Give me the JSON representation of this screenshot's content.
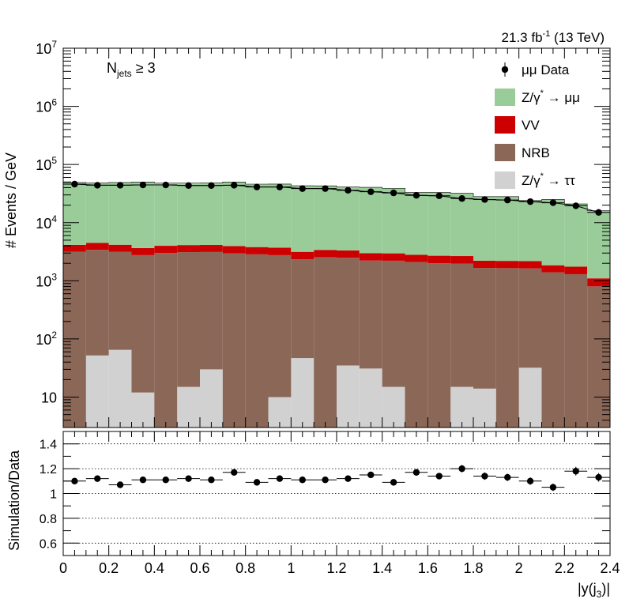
{
  "chart_data": {
    "type": "bar",
    "stacked": true,
    "lumi_label": "21.3 fb",
    "lumi_sup": "-1",
    "lumi_suffix": " (13 TeV)",
    "annotation_main": "N",
    "annotation_sub": "jets",
    "annotation_rest": " ≥ 3",
    "ylabel": "# Events / GeV",
    "ratio_ylabel": "Simulation/Data",
    "xlabel_main": "|y(j",
    "xlabel_sub": "3",
    "xlabel_end": ")|",
    "xlim": [
      0,
      2.4
    ],
    "ylim": [
      3,
      10000000
    ],
    "y_scale": "log",
    "ratio_ylim": [
      0.5,
      1.5
    ],
    "legend_placement": "top-right",
    "x_edges": [
      0,
      0.1,
      0.2,
      0.3,
      0.4,
      0.5,
      0.6,
      0.7,
      0.8,
      0.9,
      1.0,
      1.1,
      1.2,
      1.3,
      1.4,
      1.5,
      1.6,
      1.7,
      1.8,
      1.9,
      2.0,
      2.1,
      2.2,
      2.3,
      2.4
    ],
    "x_ticks": [
      {
        "v": 0,
        "label": "0"
      },
      {
        "v": 0.2,
        "label": "0.2"
      },
      {
        "v": 0.4,
        "label": "0.4"
      },
      {
        "v": 0.6,
        "label": "0.6"
      },
      {
        "v": 0.8,
        "label": "0.8"
      },
      {
        "v": 1.0,
        "label": "1"
      },
      {
        "v": 1.2,
        "label": "1.2"
      },
      {
        "v": 1.4,
        "label": "1.4"
      },
      {
        "v": 1.6,
        "label": "1.6"
      },
      {
        "v": 1.8,
        "label": "1.8"
      },
      {
        "v": 2.0,
        "label": "2"
      },
      {
        "v": 2.2,
        "label": "2.2"
      },
      {
        "v": 2.4,
        "label": "2.4"
      }
    ],
    "y_ticks": [
      {
        "v": 10,
        "base": "10",
        "exp": ""
      },
      {
        "v": 100,
        "base": "10",
        "exp": "2"
      },
      {
        "v": 1000,
        "base": "10",
        "exp": "3"
      },
      {
        "v": 10000,
        "base": "10",
        "exp": "4"
      },
      {
        "v": 100000,
        "base": "10",
        "exp": "5"
      },
      {
        "v": 1000000,
        "base": "10",
        "exp": "6"
      },
      {
        "v": 10000000,
        "base": "10",
        "exp": "7"
      }
    ],
    "ratio_y_ticks": [
      {
        "v": 0.6,
        "label": "0.6"
      },
      {
        "v": 0.8,
        "label": "0.8"
      },
      {
        "v": 1.0,
        "label": "1"
      },
      {
        "v": 1.2,
        "label": "1.2"
      },
      {
        "v": 1.4,
        "label": "1.4"
      }
    ],
    "ratio_gridlines": [
      0.6,
      0.8,
      1.0,
      1.2,
      1.4
    ],
    "series": [
      {
        "name": "Z/γ* → ττ",
        "legend_main": "Z/γ",
        "legend_sup": "*",
        "legend_rest": " → ττ",
        "color": "#d1d1d1",
        "values": [
          0,
          52,
          65,
          12,
          0,
          15,
          30,
          0,
          0,
          10,
          47,
          0,
          35,
          31,
          15,
          0,
          0,
          15,
          14,
          0,
          32,
          0,
          0,
          3
        ]
      },
      {
        "name": "NRB",
        "legend_main": "NRB",
        "legend_sup": "",
        "legend_rest": "",
        "color": "#8b6758",
        "values": [
          3150,
          3350,
          3100,
          2750,
          3000,
          3100,
          3100,
          2950,
          2850,
          2750,
          2300,
          2550,
          2450,
          2200,
          2200,
          2100,
          2000,
          1950,
          1650,
          1650,
          1600,
          1400,
          1300,
          800
        ]
      },
      {
        "name": "VV",
        "legend_main": "VV",
        "legend_sup": "",
        "legend_rest": "",
        "color": "#cc0000",
        "values": [
          1000,
          1100,
          1000,
          900,
          1000,
          1000,
          1000,
          1000,
          950,
          950,
          800,
          850,
          850,
          750,
          750,
          700,
          700,
          700,
          550,
          550,
          550,
          450,
          450,
          300
        ]
      },
      {
        "name": "Z/γ* → μμ",
        "legend_main": "Z/γ",
        "legend_sup": "*",
        "legend_rest": " → μμ",
        "color": "#99cc99",
        "values": [
          44850,
          43550,
          44900,
          46350,
          44000,
          43900,
          43900,
          46050,
          42200,
          42300,
          39900,
          39600,
          37700,
          37550,
          36050,
          30200,
          30300,
          29350,
          25800,
          25800,
          21850,
          23150,
          19250,
          14900
        ]
      }
    ],
    "data": {
      "name": "μμ Data",
      "legend_label": "μμ Data",
      "values": [
        46000,
        44000,
        44000,
        44500,
        44500,
        43500,
        43500,
        44000,
        41000,
        41000,
        38500,
        38500,
        36000,
        34000,
        32500,
        29500,
        29000,
        26000,
        25000,
        24500,
        23000,
        22000,
        19500,
        15000
      ],
      "errors": [
        700,
        700,
        700,
        700,
        700,
        700,
        700,
        700,
        700,
        700,
        650,
        650,
        650,
        650,
        600,
        600,
        600,
        550,
        550,
        550,
        500,
        500,
        450,
        400
      ]
    },
    "ratio": {
      "values": [
        1.1,
        1.12,
        1.07,
        1.11,
        1.11,
        1.12,
        1.11,
        1.17,
        1.09,
        1.12,
        1.11,
        1.11,
        1.12,
        1.15,
        1.09,
        1.17,
        1.14,
        1.2,
        1.14,
        1.13,
        1.1,
        1.05,
        1.18,
        1.13
      ],
      "errors": [
        0.025,
        0.025,
        0.025,
        0.025,
        0.025,
        0.025,
        0.025,
        0.025,
        0.025,
        0.025,
        0.025,
        0.025,
        0.025,
        0.025,
        0.025,
        0.025,
        0.025,
        0.03,
        0.03,
        0.03,
        0.03,
        0.03,
        0.035,
        0.035
      ]
    }
  }
}
